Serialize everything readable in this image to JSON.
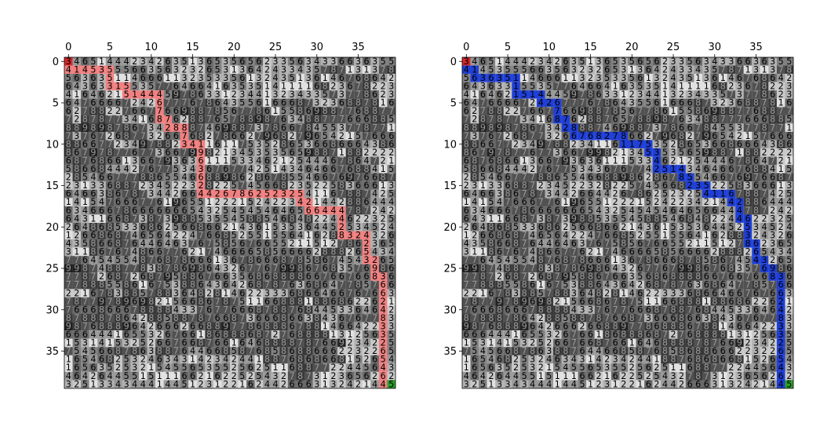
{
  "chart_data": [
    {
      "type": "heatmap",
      "description_of_grid": "40x40 grid of integer weights 1-9 shown in grayscale, with a path overlay",
      "x_ticks": [
        "0",
        "5",
        "10",
        "15",
        "20",
        "25",
        "30",
        "35"
      ],
      "y_ticks": [
        "0",
        "5",
        "10",
        "15",
        "20",
        "25",
        "30",
        "35"
      ],
      "xlim": [
        -0.5,
        39.5
      ],
      "ylim": [
        39.5,
        -0.5
      ],
      "x_axis_position": "top",
      "start_cell": [
        0,
        0
      ],
      "goal_cell": [
        39,
        39
      ],
      "start_color": "#d62728",
      "goal_color": "#2ca02c",
      "path_color": "#f08080",
      "path": [
        [
          0,
          0
        ],
        [
          1,
          0
        ],
        [
          1,
          1
        ],
        [
          1,
          2
        ],
        [
          1,
          3
        ],
        [
          1,
          4
        ],
        [
          1,
          5
        ],
        [
          2,
          5
        ],
        [
          3,
          5
        ],
        [
          3,
          6
        ],
        [
          3,
          7
        ],
        [
          4,
          7
        ],
        [
          4,
          8
        ],
        [
          4,
          9
        ],
        [
          4,
          10
        ],
        [
          4,
          11
        ],
        [
          5,
          11
        ],
        [
          6,
          11
        ],
        [
          7,
          11
        ],
        [
          7,
          12
        ],
        [
          8,
          12
        ],
        [
          8,
          13
        ],
        [
          8,
          14
        ],
        [
          9,
          14
        ],
        [
          10,
          14
        ],
        [
          10,
          15
        ],
        [
          10,
          16
        ],
        [
          11,
          16
        ],
        [
          12,
          16
        ],
        [
          13,
          16
        ],
        [
          14,
          16
        ],
        [
          15,
          16
        ],
        [
          16,
          16
        ],
        [
          16,
          17
        ],
        [
          16,
          18
        ],
        [
          16,
          19
        ],
        [
          16,
          20
        ],
        [
          16,
          21
        ],
        [
          16,
          22
        ],
        [
          16,
          23
        ],
        [
          16,
          24
        ],
        [
          16,
          25
        ],
        [
          16,
          26
        ],
        [
          16,
          27
        ],
        [
          16,
          28
        ],
        [
          17,
          28
        ],
        [
          17,
          29
        ],
        [
          18,
          29
        ],
        [
          18,
          30
        ],
        [
          18,
          31
        ],
        [
          18,
          32
        ],
        [
          18,
          33
        ],
        [
          19,
          33
        ],
        [
          20,
          33
        ],
        [
          21,
          33
        ],
        [
          21,
          34
        ],
        [
          21,
          35
        ],
        [
          21,
          36
        ],
        [
          22,
          36
        ],
        [
          23,
          36
        ],
        [
          24,
          36
        ],
        [
          24,
          37
        ],
        [
          25,
          37
        ],
        [
          26,
          37
        ],
        [
          26,
          38
        ],
        [
          27,
          38
        ],
        [
          28,
          38
        ],
        [
          29,
          38
        ],
        [
          30,
          38
        ],
        [
          31,
          38
        ],
        [
          32,
          38
        ],
        [
          33,
          38
        ],
        [
          34,
          38
        ],
        [
          35,
          38
        ],
        [
          36,
          38
        ],
        [
          37,
          38
        ],
        [
          38,
          38
        ],
        [
          39,
          38
        ],
        [
          39,
          39
        ]
      ],
      "grid_rows": [
        "3465144423426351365356562335634336636355",
        "4145355566356323265313642433435787131378",
        "5636351146661132353356132435136146768642",
        "6436331553577646641635351411116823678223",
        "4164621514445978633123441323433573778623",
        "6476666724267776786435561666873236887816",
        "6278822766776698878567786155869887768877",
        "7287877341687628876578898763488777666885",
        "8898987867342888746988737866784553778771",
        "7376726877326676827866279682796542157666",
        "8866772349788234116117535286536686664386",
        "8679787767736679982134535356598871882222",
        "6876866136679363611153346212544467864721",
        "5866844427677534367677425143464667688415",
        "2854667778865546688986286785546676976687",
        "2313368872345223282257456682352258366613",
        "6466386787344266442678625232541167887425",
        "1415476667761965512221524223421442886444",
        "6346667866666665432545454646566444787242",
        "6431166873873988535545885468482244622325",
        "2648685336862566866214361535364452534524",
        "1266868746564224766852551556416288324326",
        "4358668764464637675856766552115127862365",
        "3118676748667762174666658566662888265434",
        "7764545548768786661367866687858674543265",
        "9987488778387869864326776799867683576986",
        "7787268726879588676635686888866766766836",
        "7788855861675388643642687876368647785766",
        "2216783885788364828146223336866466767663",
        "7877978969821566867875116688818868622621",
        "7666866678888433767766687887684453364642",
        "8788878642885887876687366686638436767783",
        "9876888964266626688977868886788146642233",
        "6664441655326766186888687276888813125635",
        "1531415325266766876616468888787669234225",
        "7545668786388764466858768586886662232265",
        "1654682532463431423424418876868668152654",
        "1656352532154556535525625116887722445643",
        "4642644551511166216225254327873123656262",
        "3251334344414451231221624426663132421445"
      ]
    },
    {
      "type": "heatmap",
      "description_of_grid": "40x40 grid of integer weights 1-9 shown in grayscale, with a path overlay",
      "x_ticks": [
        "0",
        "5",
        "10",
        "15",
        "20",
        "25",
        "30",
        "35"
      ],
      "y_ticks": [
        "0",
        "5",
        "10",
        "15",
        "20",
        "25",
        "30",
        "35"
      ],
      "xlim": [
        -0.5,
        39.5
      ],
      "ylim": [
        39.5,
        -0.5
      ],
      "x_axis_position": "top",
      "start_cell": [
        0,
        0
      ],
      "goal_cell": [
        39,
        39
      ],
      "start_color": "#d62728",
      "goal_color": "#2ca02c",
      "path_color": "#1f3fd6",
      "path": [
        [
          0,
          0
        ],
        [
          1,
          0
        ],
        [
          1,
          1
        ],
        [
          2,
          1
        ],
        [
          2,
          2
        ],
        [
          2,
          3
        ],
        [
          2,
          4
        ],
        [
          2,
          5
        ],
        [
          2,
          6
        ],
        [
          3,
          6
        ],
        [
          4,
          6
        ],
        [
          4,
          7
        ],
        [
          4,
          8
        ],
        [
          4,
          9
        ],
        [
          5,
          9
        ],
        [
          5,
          10
        ],
        [
          5,
          11
        ],
        [
          6,
          11
        ],
        [
          7,
          11
        ],
        [
          7,
          12
        ],
        [
          8,
          12
        ],
        [
          8,
          13
        ],
        [
          9,
          13
        ],
        [
          9,
          14
        ],
        [
          9,
          15
        ],
        [
          9,
          16
        ],
        [
          9,
          17
        ],
        [
          9,
          18
        ],
        [
          9,
          19
        ],
        [
          10,
          19
        ],
        [
          10,
          20
        ],
        [
          10,
          21
        ],
        [
          10,
          22
        ],
        [
          11,
          22
        ],
        [
          11,
          23
        ],
        [
          12,
          23
        ],
        [
          13,
          23
        ],
        [
          13,
          24
        ],
        [
          13,
          25
        ],
        [
          13,
          26
        ],
        [
          14,
          26
        ],
        [
          14,
          27
        ],
        [
          15,
          27
        ],
        [
          15,
          28
        ],
        [
          15,
          29
        ],
        [
          16,
          29
        ],
        [
          16,
          30
        ],
        [
          16,
          31
        ],
        [
          16,
          32
        ],
        [
          17,
          32
        ],
        [
          17,
          33
        ],
        [
          18,
          33
        ],
        [
          19,
          33
        ],
        [
          19,
          34
        ],
        [
          20,
          34
        ],
        [
          21,
          34
        ],
        [
          22,
          34
        ],
        [
          22,
          35
        ],
        [
          23,
          35
        ],
        [
          24,
          35
        ],
        [
          24,
          36
        ],
        [
          25,
          36
        ],
        [
          25,
          37
        ],
        [
          26,
          37
        ],
        [
          26,
          38
        ],
        [
          27,
          38
        ],
        [
          28,
          38
        ],
        [
          29,
          38
        ],
        [
          30,
          38
        ],
        [
          31,
          38
        ],
        [
          32,
          38
        ],
        [
          33,
          38
        ],
        [
          34,
          38
        ],
        [
          35,
          38
        ],
        [
          36,
          38
        ],
        [
          37,
          38
        ],
        [
          38,
          38
        ],
        [
          39,
          38
        ],
        [
          39,
          39
        ]
      ],
      "grid_rows": [
        "3465144423426351365356562335634336636355",
        "4145355566356323265313642433435787131378",
        "5636351146661132353356132435136146768642",
        "6436331553577646641635351411116823678223",
        "4164621514445978633123441323433573778623",
        "6476666724267776786435561666873236887816",
        "6278822766776698878567786155869887768877",
        "7287877341687628876578898763488777666885",
        "8898987867342888746988737866784553778771",
        "7376726877326676827866279682796542157666",
        "8866772349788234116117535286536686664386",
        "8679787767736679982134535356598871882222",
        "6876866136679363611153346212544467864721",
        "5866844427677534367677425143464667688415",
        "2854667778865546688986286785546676976687",
        "2313368872345223282257456682352258366613",
        "6466386787344266442678625232541167887425",
        "1415476667761965512221524223421442886444",
        "6346667866666665432545454646566444787242",
        "6431166873873988535545885468482244622325",
        "2648685336862566866214361535364452534524",
        "1266868746564224766852551556416288324326",
        "4358668764464637675856766552115127862365",
        "3118676748667762174666658566662888265434",
        "7764545548768786661367866687858674543265",
        "9987488778387869864326776799867683576986",
        "7787268726879588676635686888866766766836",
        "7788855861675388643642687876368647785766",
        "2216783885788364828146223336866466767663",
        "7877978969821566867875116688818868622621",
        "7666866678888433767766687887684453364642",
        "8788878642885887876687366686638436767783",
        "9876888964266626688977868886788146642233",
        "6664441655326766186888687276888813125635",
        "1531415325266766876616468888787669234225",
        "7545668786388764466858768586886662232265",
        "1654682532463431423424418876868668152654",
        "1656352532154556535525625116887722445643",
        "4642644551511166216225254327873123656262",
        "3251334344414451231221624426663132421445"
      ]
    }
  ]
}
